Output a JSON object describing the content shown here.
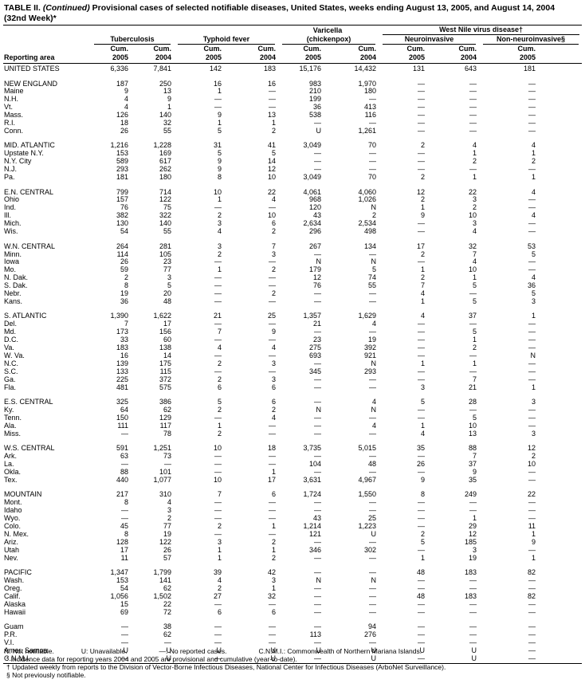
{
  "title_prefix": "TABLE II.",
  "title_italic": "(Continued)",
  "title_rest": "Provisional cases of selected notifiable diseases, United States, weeks ending August 13, 2005, and August 14, 2004 (32nd Week)*",
  "header": {
    "varicella": "Varicella",
    "wnv": "West Nile virus disease†",
    "tuberculosis": "Tuberculosis",
    "typhoid": "Typhoid fever",
    "chickenpox": "(chickenpox)",
    "neuro": "Neuroinvasive",
    "nonneuro": "Non-neuroinvasive§",
    "area": "Reporting area",
    "cols": [
      [
        "Cum.",
        "2005"
      ],
      [
        "Cum.",
        "2004"
      ],
      [
        "Cum.",
        "2005"
      ],
      [
        "Cum.",
        "2004"
      ],
      [
        "Cum.",
        "2005"
      ],
      [
        "Cum.",
        "2004"
      ],
      [
        "Cum.",
        "2005"
      ],
      [
        "Cum.",
        "2004"
      ],
      [
        "Cum.",
        "2005"
      ]
    ]
  },
  "groups": [
    [
      [
        "UNITED STATES",
        "6,336",
        "7,841",
        "142",
        "183",
        "15,176",
        "14,432",
        "131",
        "643",
        "181"
      ]
    ],
    [
      [
        "NEW ENGLAND",
        "187",
        "250",
        "16",
        "16",
        "983",
        "1,970",
        "—",
        "—",
        "—"
      ],
      [
        "Maine",
        "9",
        "13",
        "1",
        "—",
        "210",
        "180",
        "—",
        "—",
        "—"
      ],
      [
        "N.H.",
        "4",
        "9",
        "—",
        "—",
        "199",
        "—",
        "—",
        "—",
        "—"
      ],
      [
        "Vt.",
        "4",
        "1",
        "—",
        "—",
        "36",
        "413",
        "—",
        "—",
        "—"
      ],
      [
        "Mass.",
        "126",
        "140",
        "9",
        "13",
        "538",
        "116",
        "—",
        "—",
        "—"
      ],
      [
        "R.I.",
        "18",
        "32",
        "1",
        "1",
        "—",
        "—",
        "—",
        "—",
        "—"
      ],
      [
        "Conn.",
        "26",
        "55",
        "5",
        "2",
        "U",
        "1,261",
        "—",
        "—",
        "—"
      ]
    ],
    [
      [
        "MID. ATLANTIC",
        "1,216",
        "1,228",
        "31",
        "41",
        "3,049",
        "70",
        "2",
        "4",
        "4"
      ],
      [
        "Upstate N.Y.",
        "153",
        "169",
        "5",
        "5",
        "—",
        "—",
        "—",
        "1",
        "1"
      ],
      [
        "N.Y. City",
        "589",
        "617",
        "9",
        "14",
        "—",
        "—",
        "—",
        "2",
        "2"
      ],
      [
        "N.J.",
        "293",
        "262",
        "9",
        "12",
        "—",
        "—",
        "—",
        "—",
        "—"
      ],
      [
        "Pa.",
        "181",
        "180",
        "8",
        "10",
        "3,049",
        "70",
        "2",
        "1",
        "1"
      ]
    ],
    [
      [
        "E.N. CENTRAL",
        "799",
        "714",
        "10",
        "22",
        "4,061",
        "4,060",
        "12",
        "22",
        "4"
      ],
      [
        "Ohio",
        "157",
        "122",
        "1",
        "4",
        "968",
        "1,026",
        "2",
        "3",
        "—"
      ],
      [
        "Ind.",
        "76",
        "75",
        "—",
        "—",
        "120",
        "N",
        "1",
        "2",
        "—"
      ],
      [
        "Ill.",
        "382",
        "322",
        "2",
        "10",
        "43",
        "2",
        "9",
        "10",
        "4"
      ],
      [
        "Mich.",
        "130",
        "140",
        "3",
        "6",
        "2,634",
        "2,534",
        "—",
        "3",
        "—"
      ],
      [
        "Wis.",
        "54",
        "55",
        "4",
        "2",
        "296",
        "498",
        "—",
        "4",
        "—"
      ]
    ],
    [
      [
        "W.N. CENTRAL",
        "264",
        "281",
        "3",
        "7",
        "267",
        "134",
        "17",
        "32",
        "53"
      ],
      [
        "Minn.",
        "114",
        "105",
        "2",
        "3",
        "—",
        "—",
        "2",
        "7",
        "5"
      ],
      [
        "Iowa",
        "26",
        "23",
        "—",
        "—",
        "N",
        "N",
        "—",
        "4",
        "—"
      ],
      [
        "Mo.",
        "59",
        "77",
        "1",
        "2",
        "179",
        "5",
        "1",
        "10",
        "—"
      ],
      [
        "N. Dak.",
        "2",
        "3",
        "—",
        "—",
        "12",
        "74",
        "2",
        "1",
        "4"
      ],
      [
        "S. Dak.",
        "8",
        "5",
        "—",
        "—",
        "76",
        "55",
        "7",
        "5",
        "36"
      ],
      [
        "Nebr.",
        "19",
        "20",
        "—",
        "2",
        "—",
        "—",
        "4",
        "—",
        "5"
      ],
      [
        "Kans.",
        "36",
        "48",
        "—",
        "—",
        "—",
        "—",
        "1",
        "5",
        "3"
      ]
    ],
    [
      [
        "S. ATLANTIC",
        "1,390",
        "1,622",
        "21",
        "25",
        "1,357",
        "1,629",
        "4",
        "37",
        "1"
      ],
      [
        "Del.",
        "7",
        "17",
        "—",
        "—",
        "21",
        "4",
        "—",
        "—",
        "—"
      ],
      [
        "Md.",
        "173",
        "156",
        "7",
        "9",
        "—",
        "—",
        "—",
        "5",
        "—"
      ],
      [
        "D.C.",
        "33",
        "60",
        "—",
        "—",
        "23",
        "19",
        "—",
        "1",
        "—"
      ],
      [
        "Va.",
        "183",
        "138",
        "4",
        "4",
        "275",
        "392",
        "—",
        "2",
        "—"
      ],
      [
        "W. Va.",
        "16",
        "14",
        "—",
        "—",
        "693",
        "921",
        "—",
        "—",
        "N"
      ],
      [
        "N.C.",
        "139",
        "175",
        "2",
        "3",
        "—",
        "N",
        "1",
        "1",
        "—"
      ],
      [
        "S.C.",
        "133",
        "115",
        "—",
        "—",
        "345",
        "293",
        "—",
        "—",
        "—"
      ],
      [
        "Ga.",
        "225",
        "372",
        "2",
        "3",
        "—",
        "—",
        "—",
        "7",
        "—"
      ],
      [
        "Fla.",
        "481",
        "575",
        "6",
        "6",
        "—",
        "—",
        "3",
        "21",
        "1"
      ]
    ],
    [
      [
        "E.S. CENTRAL",
        "325",
        "386",
        "5",
        "6",
        "—",
        "4",
        "5",
        "28",
        "3"
      ],
      [
        "Ky.",
        "64",
        "62",
        "2",
        "2",
        "N",
        "N",
        "—",
        "—",
        "—"
      ],
      [
        "Tenn.",
        "150",
        "129",
        "—",
        "4",
        "—",
        "—",
        "—",
        "5",
        "—"
      ],
      [
        "Ala.",
        "111",
        "117",
        "1",
        "—",
        "—",
        "4",
        "1",
        "10",
        "—"
      ],
      [
        "Miss.",
        "—",
        "78",
        "2",
        "—",
        "—",
        "—",
        "4",
        "13",
        "3"
      ]
    ],
    [
      [
        "W.S. CENTRAL",
        "591",
        "1,251",
        "10",
        "18",
        "3,735",
        "5,015",
        "35",
        "88",
        "12"
      ],
      [
        "Ark.",
        "63",
        "73",
        "—",
        "—",
        "—",
        "—",
        "—",
        "7",
        "2"
      ],
      [
        "La.",
        "—",
        "—",
        "—",
        "—",
        "104",
        "48",
        "26",
        "37",
        "10"
      ],
      [
        "Okla.",
        "88",
        "101",
        "—",
        "1",
        "—",
        "—",
        "—",
        "9",
        "—"
      ],
      [
        "Tex.",
        "440",
        "1,077",
        "10",
        "17",
        "3,631",
        "4,967",
        "9",
        "35",
        "—"
      ]
    ],
    [
      [
        "MOUNTAIN",
        "217",
        "310",
        "7",
        "6",
        "1,724",
        "1,550",
        "8",
        "249",
        "22"
      ],
      [
        "Mont.",
        "8",
        "4",
        "—",
        "—",
        "—",
        "—",
        "—",
        "—",
        "—"
      ],
      [
        "Idaho",
        "—",
        "3",
        "—",
        "—",
        "—",
        "—",
        "—",
        "—",
        "—"
      ],
      [
        "Wyo.",
        "—",
        "2",
        "—",
        "—",
        "43",
        "25",
        "—",
        "1",
        "—"
      ],
      [
        "Colo.",
        "45",
        "77",
        "2",
        "1",
        "1,214",
        "1,223",
        "—",
        "29",
        "11"
      ],
      [
        "N. Mex.",
        "8",
        "19",
        "—",
        "—",
        "121",
        "U",
        "2",
        "12",
        "1"
      ],
      [
        "Ariz.",
        "128",
        "122",
        "3",
        "2",
        "—",
        "—",
        "5",
        "185",
        "9"
      ],
      [
        "Utah",
        "17",
        "26",
        "1",
        "1",
        "346",
        "302",
        "—",
        "3",
        "—"
      ],
      [
        "Nev.",
        "11",
        "57",
        "1",
        "2",
        "—",
        "—",
        "1",
        "19",
        "1"
      ]
    ],
    [
      [
        "PACIFIC",
        "1,347",
        "1,799",
        "39",
        "42",
        "—",
        "—",
        "48",
        "183",
        "82"
      ],
      [
        "Wash.",
        "153",
        "141",
        "4",
        "3",
        "N",
        "N",
        "—",
        "—",
        "—"
      ],
      [
        "Oreg.",
        "54",
        "62",
        "2",
        "1",
        "—",
        "—",
        "—",
        "—",
        "—"
      ],
      [
        "Calif.",
        "1,056",
        "1,502",
        "27",
        "32",
        "—",
        "—",
        "48",
        "183",
        "82"
      ],
      [
        "Alaska",
        "15",
        "22",
        "—",
        "—",
        "—",
        "—",
        "—",
        "—",
        "—"
      ],
      [
        "Hawaii",
        "69",
        "72",
        "6",
        "6",
        "—",
        "—",
        "—",
        "—",
        "—"
      ]
    ],
    [
      [
        "Guam",
        "—",
        "38",
        "—",
        "—",
        "—",
        "94",
        "—",
        "—",
        "—"
      ],
      [
        "P.R.",
        "—",
        "62",
        "—",
        "—",
        "113",
        "276",
        "—",
        "—",
        "—"
      ],
      [
        "V.I.",
        "—",
        "—",
        "—",
        "—",
        "—",
        "—",
        "—",
        "—",
        "—"
      ],
      [
        "Amer. Samoa",
        "U",
        "U",
        "U",
        "U",
        "U",
        "U",
        "U",
        "U",
        "—"
      ],
      [
        "C.N.M.I.",
        "—",
        "U",
        "—",
        "U",
        "—",
        "U",
        "—",
        "U",
        "—"
      ]
    ]
  ],
  "legend": [
    "N: Not notifiable.",
    "U: Unavailable.",
    "—: No reported cases.",
    "C.N.M.I.: Commonwealth of Northern Mariana Islands."
  ],
  "footnotes": [
    "* Incidence data for reporting years 2004 and 2005 are provisional and cumulative (year-to-date).",
    "† Updated weekly from reports to the Division of Vector-Borne Infectious Diseases, National Center for Infectious Diseases (ArboNet Surveillance).",
    "§ Not previously notifiable."
  ]
}
